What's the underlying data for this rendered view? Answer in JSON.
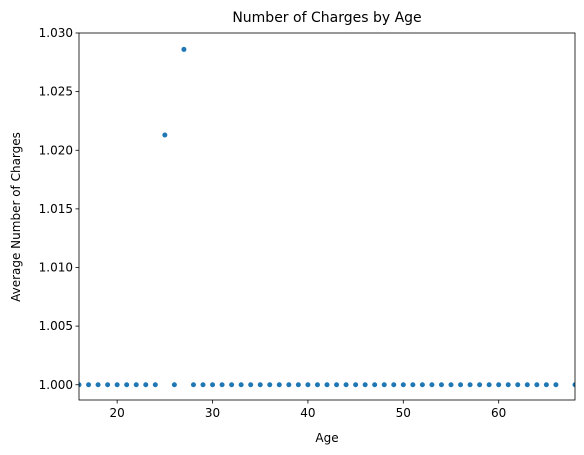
{
  "chart_data": {
    "type": "scatter",
    "title": "Number of Charges by Age",
    "xlabel": "Age",
    "ylabel": "Average Number of Charges",
    "xlim": [
      16,
      68
    ],
    "ylim": [
      0.9987,
      1.03
    ],
    "x_ticks": [
      20,
      30,
      40,
      50,
      60
    ],
    "x_tick_labels": [
      "20",
      "30",
      "40",
      "50",
      "60"
    ],
    "y_ticks": [
      1.0,
      1.005,
      1.01,
      1.015,
      1.02,
      1.025,
      1.03
    ],
    "y_tick_labels": [
      "1.000",
      "1.005",
      "1.010",
      "1.015",
      "1.020",
      "1.025",
      "1.030"
    ],
    "grid": false,
    "marker_color": "#1f77b4",
    "series": [
      {
        "points": [
          [
            16,
            1.0
          ],
          [
            17,
            1.0
          ],
          [
            18,
            1.0
          ],
          [
            19,
            1.0
          ],
          [
            20,
            1.0
          ],
          [
            21,
            1.0
          ],
          [
            22,
            1.0
          ],
          [
            23,
            1.0
          ],
          [
            24,
            1.0
          ],
          [
            25,
            1.0213
          ],
          [
            26,
            1.0
          ],
          [
            27,
            1.0286
          ],
          [
            28,
            1.0
          ],
          [
            29,
            1.0
          ],
          [
            30,
            1.0
          ],
          [
            31,
            1.0
          ],
          [
            32,
            1.0
          ],
          [
            33,
            1.0
          ],
          [
            34,
            1.0
          ],
          [
            35,
            1.0
          ],
          [
            36,
            1.0
          ],
          [
            37,
            1.0
          ],
          [
            38,
            1.0
          ],
          [
            39,
            1.0
          ],
          [
            40,
            1.0
          ],
          [
            41,
            1.0
          ],
          [
            42,
            1.0
          ],
          [
            43,
            1.0
          ],
          [
            44,
            1.0
          ],
          [
            45,
            1.0
          ],
          [
            46,
            1.0
          ],
          [
            47,
            1.0
          ],
          [
            48,
            1.0
          ],
          [
            49,
            1.0
          ],
          [
            50,
            1.0
          ],
          [
            51,
            1.0
          ],
          [
            52,
            1.0
          ],
          [
            53,
            1.0
          ],
          [
            54,
            1.0
          ],
          [
            55,
            1.0
          ],
          [
            56,
            1.0
          ],
          [
            57,
            1.0
          ],
          [
            58,
            1.0
          ],
          [
            59,
            1.0
          ],
          [
            60,
            1.0
          ],
          [
            61,
            1.0
          ],
          [
            62,
            1.0
          ],
          [
            63,
            1.0
          ],
          [
            64,
            1.0
          ],
          [
            65,
            1.0
          ],
          [
            66,
            1.0
          ],
          [
            68,
            1.0
          ]
        ]
      }
    ]
  }
}
